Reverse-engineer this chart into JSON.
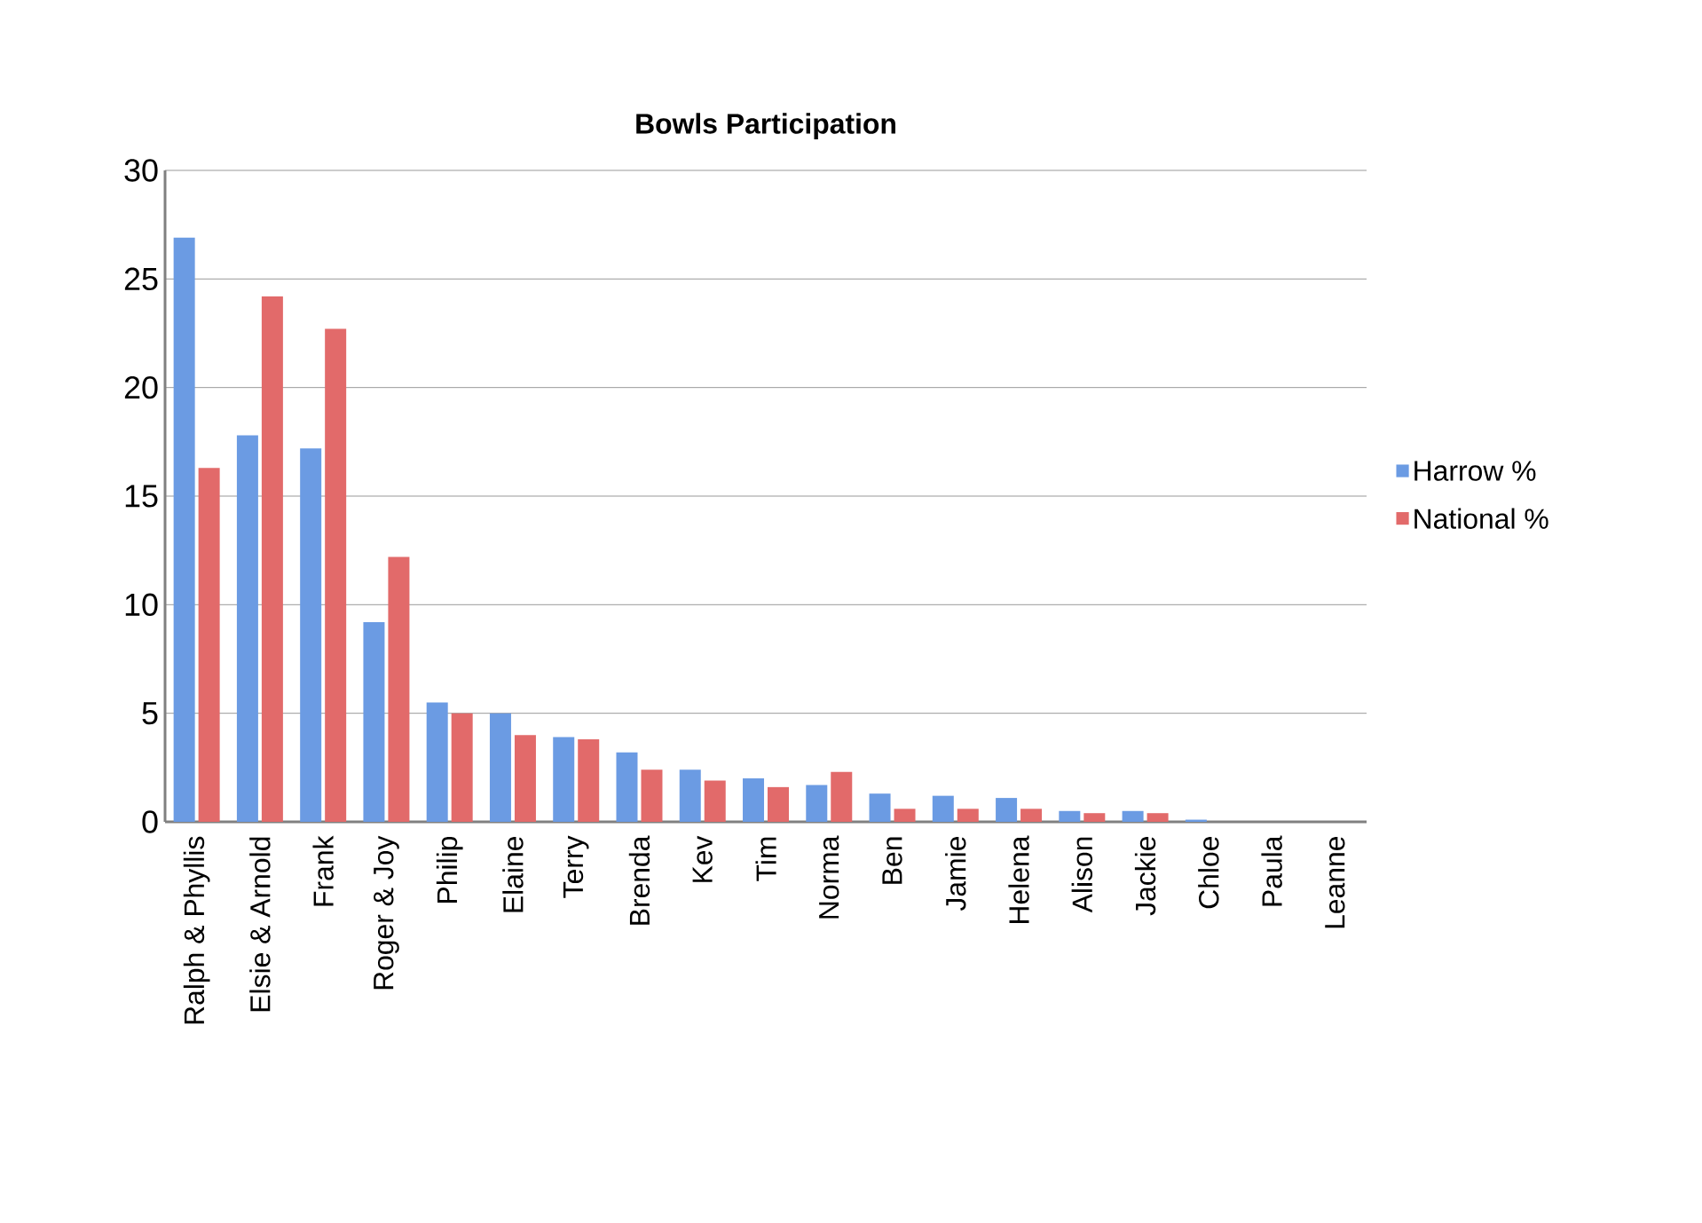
{
  "chart_data": {
    "type": "bar",
    "title": "Bowls Participation",
    "categories": [
      "Ralph & Phyllis",
      "Elsie & Arnold",
      "Frank",
      "Roger & Joy",
      "Philip",
      "Elaine",
      "Terry",
      "Brenda",
      "Kev",
      "Tim",
      "Norma",
      "Ben",
      "Jamie",
      "Helena",
      "Alison",
      "Jackie",
      "Chloe",
      "Paula",
      "Leanne"
    ],
    "series": [
      {
        "name": "Harrow %",
        "color": "#6b9be3",
        "values": [
          26.9,
          17.8,
          17.2,
          9.2,
          5.5,
          5.0,
          3.9,
          3.2,
          2.4,
          2.0,
          1.7,
          1.3,
          1.2,
          1.1,
          0.5,
          0.5,
          0.1,
          0,
          0
        ]
      },
      {
        "name": "National %",
        "color": "#e26a6a",
        "values": [
          16.3,
          24.2,
          22.7,
          12.2,
          5.0,
          4.0,
          3.8,
          2.4,
          1.9,
          1.6,
          2.3,
          0.6,
          0.6,
          0.6,
          0.4,
          0.4,
          0,
          0,
          0
        ]
      }
    ],
    "ylim": [
      0,
      30
    ],
    "yticks": [
      0,
      5,
      10,
      15,
      20,
      25,
      30
    ],
    "grid": "y",
    "legend": "right"
  }
}
